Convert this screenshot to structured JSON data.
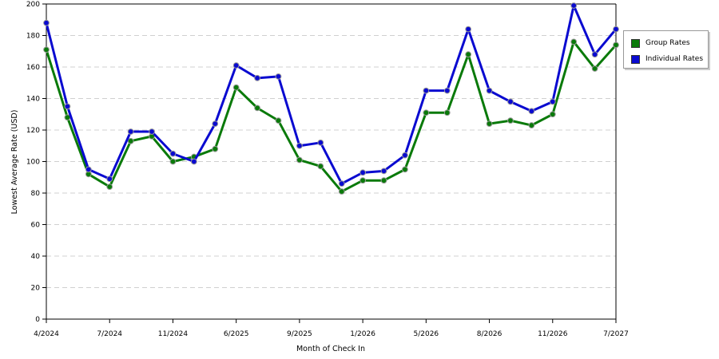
{
  "chart_data": {
    "type": "line",
    "xlabel": "Month of Check In",
    "ylabel": "Lowest Average Rate (USD)",
    "ylim": [
      0,
      200
    ],
    "yticks": [
      0,
      20,
      40,
      60,
      80,
      100,
      120,
      140,
      160,
      180,
      200
    ],
    "x_tick_labels": [
      "4/2024",
      "7/2024",
      "11/2024",
      "6/2025",
      "9/2025",
      "1/2026",
      "5/2026",
      "8/2026",
      "11/2026",
      "7/2027"
    ],
    "grid": "horizontal dashed",
    "legend_position": "right",
    "series": [
      {
        "name": "Group Rates",
        "color": "#0a7a0a",
        "values": [
          171,
          128,
          92,
          84,
          113,
          116,
          100,
          103,
          108,
          147,
          134,
          126,
          101,
          97,
          81,
          88,
          88,
          95,
          131,
          131,
          168,
          124,
          126,
          123,
          130,
          176,
          159,
          174
        ]
      },
      {
        "name": "Individual Rates",
        "color": "#0a0ad0",
        "values": [
          188,
          135,
          95,
          89,
          119,
          119,
          105,
          100,
          124,
          161,
          153,
          154,
          110,
          112,
          86,
          93,
          94,
          104,
          145,
          145,
          184,
          145,
          138,
          132,
          138,
          199,
          168,
          184
        ]
      }
    ]
  }
}
